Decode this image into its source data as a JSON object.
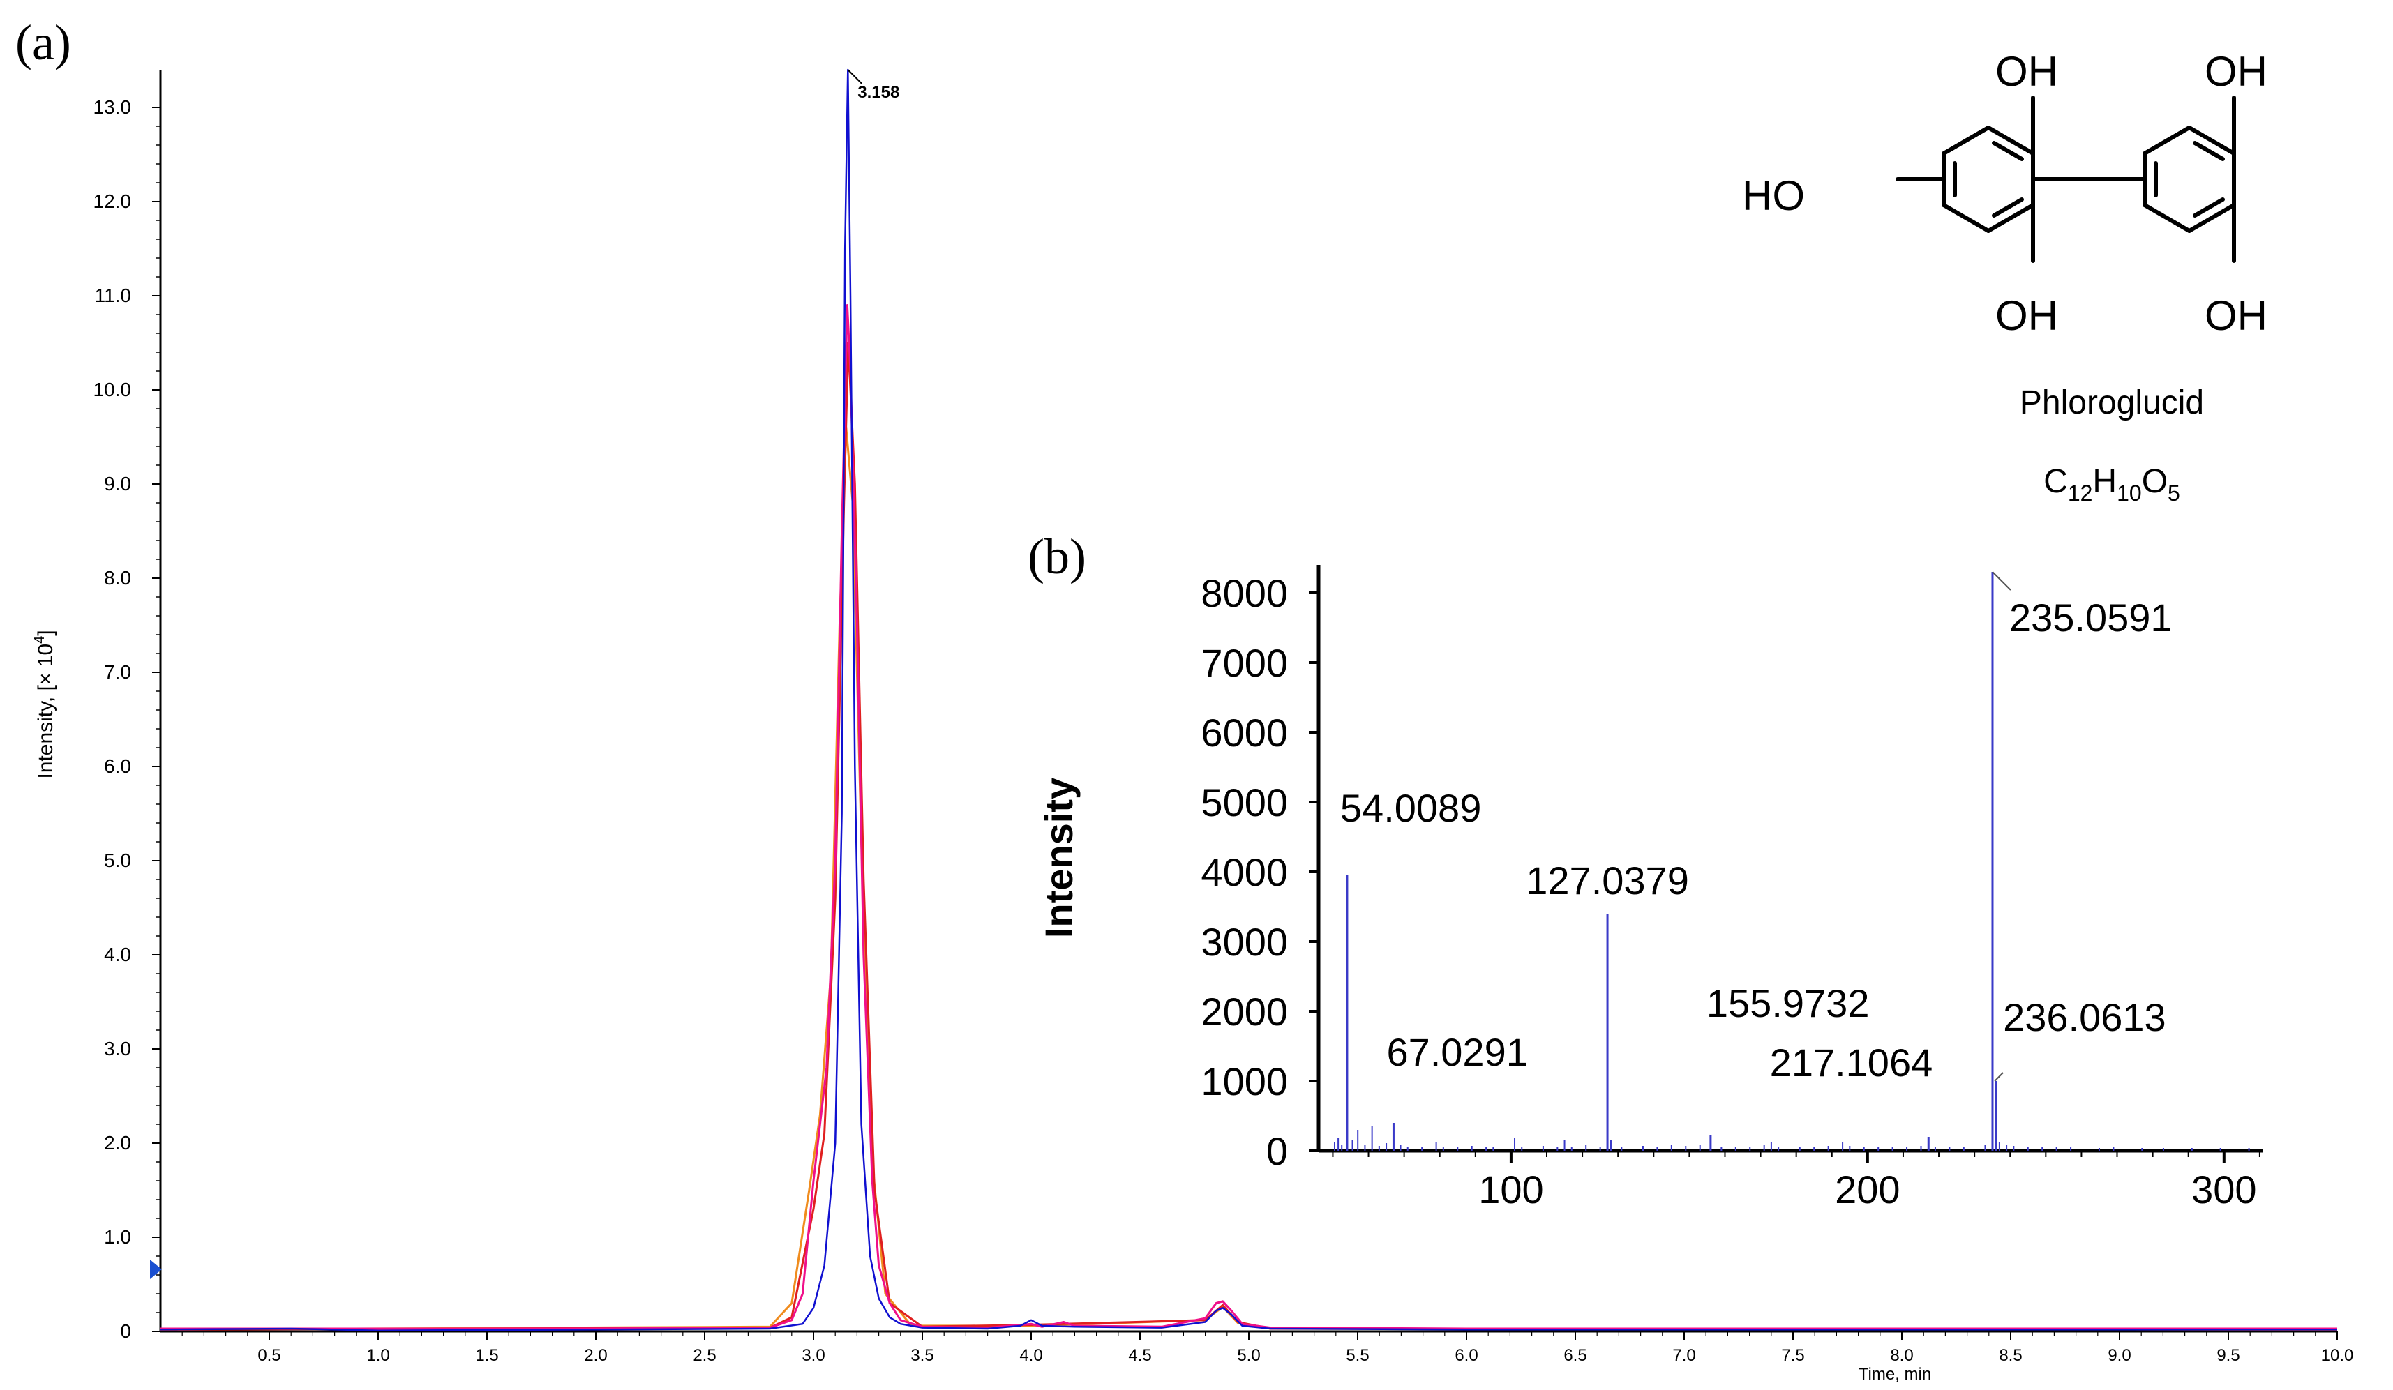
{
  "panel_labels": {
    "a": "(a)",
    "b": "(b)"
  },
  "structure": {
    "compound_name": "Phloroglucid",
    "formula": {
      "C": "C",
      "c_count": "12",
      "H": "H",
      "h_count": "10",
      "O": "O",
      "o_count": "5"
    },
    "substituents": [
      "OH",
      "OH",
      "HO",
      "OH",
      "OH"
    ]
  },
  "colors": {
    "trace_blue": "#1010d0",
    "trace_pink": "#f0108a",
    "trace_red": "#e02020",
    "trace_orange": "#f08c1e",
    "trace_purple": "#9b30c8",
    "spectrum_blue": "#3a3ac8",
    "axis": "#000000",
    "marker_blue": "#1a4fd0"
  },
  "chart_data": [
    {
      "type": "line",
      "panel": "a",
      "title": "",
      "xlabel": "Time, min",
      "ylabel": "Intensity, [× 10",
      "ylabel_exponent": "4",
      "ylabel_suffix": "]",
      "xlim": [
        0.0,
        10.0
      ],
      "ylim": [
        0.0,
        13.4
      ],
      "x_ticks": [
        "0.5",
        "1.0",
        "1.5",
        "2.0",
        "2.5",
        "3.0",
        "3.5",
        "4.0",
        "4.5",
        "5.0",
        "5.5",
        "6.0",
        "6.5",
        "7.0",
        "7.5",
        "8.0",
        "8.5",
        "9.0",
        "9.5",
        "10.0"
      ],
      "y_ticks": [
        "0",
        "1.0",
        "2.0",
        "3.0",
        "4.0",
        "5.0",
        "6.0",
        "7.0",
        "8.0",
        "9.0",
        "10.0",
        "11.0",
        "12.0",
        "13.0"
      ],
      "peak_annotation": {
        "x": 3.158,
        "y": 13.4,
        "label": "3.158"
      },
      "series": [
        {
          "color_key": "trace_blue",
          "x": [
            0.0,
            0.6,
            1.0,
            2.0,
            2.8,
            2.95,
            3.0,
            3.05,
            3.1,
            3.13,
            3.145,
            3.158,
            3.17,
            3.19,
            3.22,
            3.26,
            3.3,
            3.35,
            3.4,
            3.5,
            3.8,
            3.95,
            4.0,
            4.05,
            4.2,
            4.6,
            4.8,
            4.85,
            4.88,
            4.92,
            4.97,
            5.1,
            6.0,
            7.0,
            8.0,
            9.0,
            10.0
          ],
          "y": [
            0.02,
            0.03,
            0.01,
            0.02,
            0.03,
            0.08,
            0.25,
            0.7,
            2.0,
            5.5,
            11.5,
            13.4,
            11.0,
            6.0,
            2.2,
            0.8,
            0.35,
            0.15,
            0.08,
            0.04,
            0.03,
            0.06,
            0.12,
            0.06,
            0.05,
            0.04,
            0.1,
            0.22,
            0.25,
            0.18,
            0.06,
            0.03,
            0.02,
            0.02,
            0.02,
            0.02,
            0.02
          ]
        },
        {
          "color_key": "trace_pink",
          "x": [
            0.0,
            1.0,
            2.0,
            2.8,
            2.9,
            2.95,
            3.0,
            3.03,
            3.06,
            3.1,
            3.13,
            3.155,
            3.17,
            3.2,
            3.23,
            3.27,
            3.3,
            3.35,
            3.4,
            3.5,
            3.8,
            4.0,
            4.05,
            4.15,
            4.2,
            4.6,
            4.8,
            4.85,
            4.88,
            4.92,
            4.97,
            5.1,
            6.0,
            7.0,
            8.0,
            9.0,
            10.0
          ],
          "y": [
            0.03,
            0.03,
            0.03,
            0.04,
            0.12,
            0.4,
            1.6,
            2.2,
            2.8,
            5.0,
            8.5,
            10.9,
            10.2,
            7.5,
            4.0,
            1.6,
            0.7,
            0.3,
            0.12,
            0.05,
            0.04,
            0.08,
            0.05,
            0.1,
            0.06,
            0.05,
            0.14,
            0.3,
            0.32,
            0.22,
            0.08,
            0.04,
            0.03,
            0.03,
            0.03,
            0.03,
            0.03
          ]
        },
        {
          "color_key": "trace_red",
          "x": [
            0.0,
            2.8,
            2.9,
            3.0,
            3.05,
            3.1,
            3.14,
            3.16,
            3.19,
            3.23,
            3.28,
            3.35,
            3.5,
            4.0,
            4.8,
            4.88,
            4.95,
            5.1,
            10.0
          ],
          "y": [
            0.02,
            0.04,
            0.15,
            1.3,
            2.1,
            4.6,
            8.8,
            10.5,
            9.0,
            4.8,
            1.5,
            0.3,
            0.05,
            0.07,
            0.12,
            0.28,
            0.1,
            0.03,
            0.02
          ]
        },
        {
          "color_key": "trace_orange",
          "x": [
            0.0,
            2.8,
            2.9,
            2.98,
            3.03,
            3.08,
            3.12,
            3.15,
            3.18,
            3.22,
            3.27,
            3.33,
            3.45,
            4.0,
            4.8,
            4.88,
            4.95,
            5.1,
            10.0
          ],
          "y": [
            0.02,
            0.05,
            0.3,
            1.5,
            2.3,
            3.8,
            7.5,
            9.6,
            8.8,
            5.2,
            1.8,
            0.4,
            0.06,
            0.06,
            0.12,
            0.26,
            0.09,
            0.03,
            0.02
          ]
        }
      ]
    },
    {
      "type": "bar",
      "panel": "b",
      "title": "",
      "xlabel": "",
      "ylabel": "Intensity",
      "xlim": [
        46.0,
        311.0
      ],
      "ylim": [
        0,
        8400
      ],
      "x_ticks": [
        "100",
        "200",
        "300"
      ],
      "y_ticks": [
        "0",
        "1000",
        "2000",
        "3000",
        "4000",
        "5000",
        "6000",
        "7000",
        "8000"
      ],
      "peaks": [
        {
          "mz": 54.0089,
          "intensity": 3950,
          "label": "54.0089"
        },
        {
          "mz": 67.0291,
          "intensity": 400,
          "label": "67.0291"
        },
        {
          "mz": 127.0379,
          "intensity": 3400,
          "label": "127.0379"
        },
        {
          "mz": 155.9732,
          "intensity": 220,
          "label": "155.9732"
        },
        {
          "mz": 217.1064,
          "intensity": 200,
          "label": "217.1064"
        },
        {
          "mz": 235.0591,
          "intensity": 8300,
          "label": "235.0591"
        },
        {
          "mz": 236.0613,
          "intensity": 1000,
          "label": "236.0613"
        }
      ],
      "minor_peaks": [
        {
          "mz": 50.5,
          "intensity": 120
        },
        {
          "mz": 51.5,
          "intensity": 180
        },
        {
          "mz": 52.5,
          "intensity": 90
        },
        {
          "mz": 55.5,
          "intensity": 150
        },
        {
          "mz": 57.0,
          "intensity": 300
        },
        {
          "mz": 59.0,
          "intensity": 80
        },
        {
          "mz": 61.0,
          "intensity": 350
        },
        {
          "mz": 63.0,
          "intensity": 70
        },
        {
          "mz": 65.0,
          "intensity": 110
        },
        {
          "mz": 69.0,
          "intensity": 90
        },
        {
          "mz": 71.0,
          "intensity": 60
        },
        {
          "mz": 75.0,
          "intensity": 50
        },
        {
          "mz": 79.0,
          "intensity": 120
        },
        {
          "mz": 81.0,
          "intensity": 60
        },
        {
          "mz": 85.0,
          "intensity": 50
        },
        {
          "mz": 89.0,
          "intensity": 70
        },
        {
          "mz": 93.0,
          "intensity": 60
        },
        {
          "mz": 95.0,
          "intensity": 50
        },
        {
          "mz": 101.0,
          "intensity": 180
        },
        {
          "mz": 103.0,
          "intensity": 60
        },
        {
          "mz": 109.0,
          "intensity": 70
        },
        {
          "mz": 113.0,
          "intensity": 50
        },
        {
          "mz": 115.0,
          "intensity": 160
        },
        {
          "mz": 117.0,
          "intensity": 60
        },
        {
          "mz": 121.0,
          "intensity": 80
        },
        {
          "mz": 125.0,
          "intensity": 60
        },
        {
          "mz": 128.0,
          "intensity": 150
        },
        {
          "mz": 131.0,
          "intensity": 50
        },
        {
          "mz": 137.0,
          "intensity": 70
        },
        {
          "mz": 141.0,
          "intensity": 60
        },
        {
          "mz": 145.0,
          "intensity": 90
        },
        {
          "mz": 149.0,
          "intensity": 70
        },
        {
          "mz": 153.0,
          "intensity": 80
        },
        {
          "mz": 159.0,
          "intensity": 60
        },
        {
          "mz": 163.0,
          "intensity": 50
        },
        {
          "mz": 167.0,
          "intensity": 60
        },
        {
          "mz": 171.0,
          "intensity": 90
        },
        {
          "mz": 173.0,
          "intensity": 120
        },
        {
          "mz": 175.0,
          "intensity": 60
        },
        {
          "mz": 181.0,
          "intensity": 50
        },
        {
          "mz": 185.0,
          "intensity": 60
        },
        {
          "mz": 189.0,
          "intensity": 70
        },
        {
          "mz": 193.0,
          "intensity": 120
        },
        {
          "mz": 195.0,
          "intensity": 70
        },
        {
          "mz": 199.0,
          "intensity": 60
        },
        {
          "mz": 203.0,
          "intensity": 50
        },
        {
          "mz": 207.0,
          "intensity": 60
        },
        {
          "mz": 211.0,
          "intensity": 50
        },
        {
          "mz": 215.0,
          "intensity": 70
        },
        {
          "mz": 219.0,
          "intensity": 60
        },
        {
          "mz": 223.0,
          "intensity": 50
        },
        {
          "mz": 227.0,
          "intensity": 60
        },
        {
          "mz": 233.0,
          "intensity": 80
        },
        {
          "mz": 237.0,
          "intensity": 120
        },
        {
          "mz": 239.0,
          "intensity": 90
        },
        {
          "mz": 241.0,
          "intensity": 70
        },
        {
          "mz": 245.0,
          "intensity": 60
        },
        {
          "mz": 249.0,
          "intensity": 50
        },
        {
          "mz": 253.0,
          "intensity": 60
        },
        {
          "mz": 257.0,
          "intensity": 50
        },
        {
          "mz": 265.0,
          "intensity": 40
        },
        {
          "mz": 269.0,
          "intensity": 50
        },
        {
          "mz": 277.0,
          "intensity": 40
        },
        {
          "mz": 283.0,
          "intensity": 40
        },
        {
          "mz": 291.0,
          "intensity": 40
        },
        {
          "mz": 299.0,
          "intensity": 40
        },
        {
          "mz": 307.0,
          "intensity": 40
        }
      ]
    }
  ]
}
